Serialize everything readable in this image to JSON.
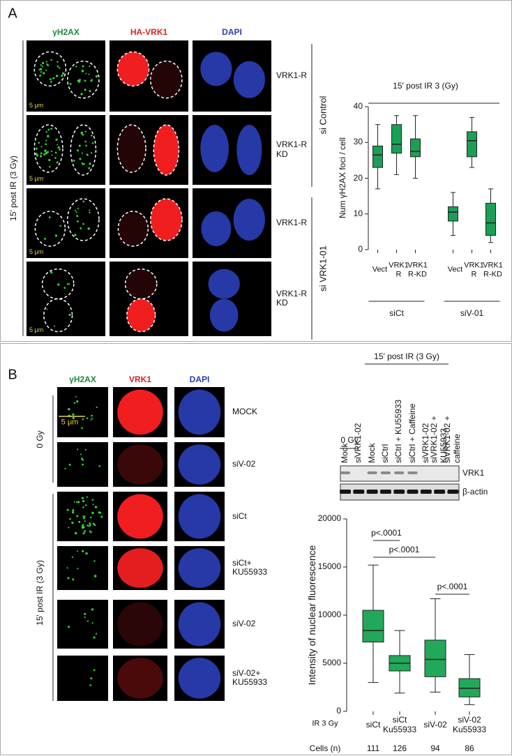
{
  "panel_a": {
    "letter": "A",
    "columns": [
      "γH2AX",
      "HA-VRK1",
      "DAPI"
    ],
    "rows": [
      "VRK1-R",
      "VRK1-R\nKD",
      "VRK1-R",
      "VRK1-R\nKD"
    ],
    "groups": [
      "si Control",
      "si VRK1-01"
    ],
    "condition": "15' post IR (3 Gy)",
    "scale_bars": [
      "5 μm",
      "5 μm",
      "5 μm",
      "5 μm"
    ]
  },
  "panel_b": {
    "letter": "B",
    "columns": [
      "γH2AX",
      "VRK1",
      "DAPI"
    ],
    "rows": [
      "MOCK",
      "siV-02",
      "siCt",
      "siCt+\nKU55933",
      "siV-02",
      "siV-02+\nKU55933"
    ],
    "groups": [
      "0 Gy",
      "15' post IR (3 Gy)"
    ],
    "scale_bar": "5 μm",
    "blot": {
      "title": "15' post IR (3 Gy)",
      "control": "0 Gy",
      "lanes": [
        "Mock",
        "siVRK1-02",
        "Mock",
        "siCtrl",
        "siCtrl + KU55933",
        "siCtrl + Caffeine",
        "siVRK1-02",
        "siVRK1-02 + KU55933",
        "siVRK1-02 + caffeine"
      ],
      "bands": [
        "VRK1",
        "β-actin"
      ]
    }
  },
  "chart_data": [
    {
      "type": "box",
      "title": "15' post IR 3 (Gy)",
      "y_label": "Num γH2AX foci / cell",
      "categories": [
        "Vect",
        "VRK1\nR",
        "VRK1\nR-KD",
        "Vect",
        "VRK1\nR",
        "VRK1\nR-KD"
      ],
      "groups": [
        "siCt",
        "siV-01"
      ],
      "color": "#1b9e55",
      "boxes": [
        {
          "min": 17,
          "q1": 23,
          "median": 26.5,
          "q3": 29,
          "max": 35
        },
        {
          "min": 21,
          "q1": 27,
          "median": 29.5,
          "q3": 35,
          "max": 37.5
        },
        {
          "min": 20,
          "q1": 26,
          "median": 27.5,
          "q3": 31,
          "max": 37.5
        },
        {
          "min": 4,
          "q1": 8,
          "median": 10.5,
          "q3": 12,
          "max": 16
        },
        {
          "min": 23,
          "q1": 26,
          "median": 30.5,
          "q3": 33,
          "max": 37
        },
        {
          "min": 2,
          "q1": 4,
          "median": 7.5,
          "q3": 13,
          "max": 17
        }
      ],
      "ylim": [
        0,
        40
      ],
      "yticks": [
        0,
        10,
        20,
        30,
        40
      ]
    },
    {
      "type": "box",
      "y_label": "Intensity of nuclear fluorescence",
      "x_label": "IR 3 Gy",
      "categories": [
        "siCt",
        "siCt\nKu55933",
        "siV-02",
        "siV-02\nKu55933"
      ],
      "color": "#22a85a",
      "boxes": [
        {
          "min": 3000,
          "q1": 7200,
          "median": 8400,
          "q3": 10500,
          "max": 15200
        },
        {
          "min": 1900,
          "q1": 4200,
          "median": 5000,
          "q3": 5800,
          "max": 8400
        },
        {
          "min": 2000,
          "q1": 3600,
          "median": 5400,
          "q3": 7400,
          "max": 11700
        },
        {
          "min": 700,
          "q1": 1500,
          "median": 2400,
          "q3": 3400,
          "max": 5900
        }
      ],
      "annotations": [
        "p<.0001",
        "p<.0001",
        "p<.0001"
      ],
      "count_label": "Cells (n)",
      "counts": [
        111,
        126,
        94,
        86
      ],
      "ylim": [
        0,
        20000
      ],
      "yticks": [
        0,
        5000,
        10000,
        15000,
        20000
      ]
    }
  ]
}
